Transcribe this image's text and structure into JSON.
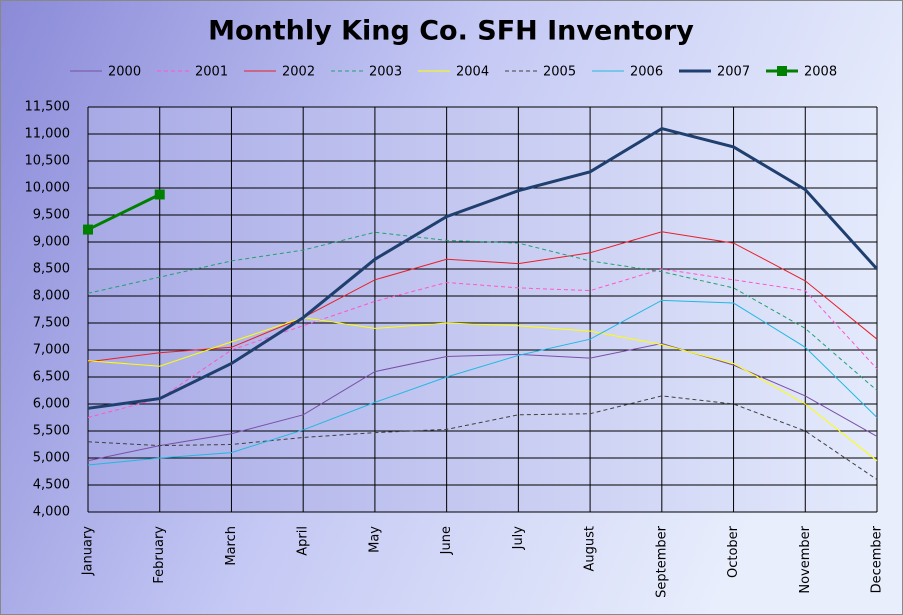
{
  "chart_data": {
    "type": "line",
    "title": "Monthly King Co. SFH Inventory",
    "categories": [
      "January",
      "February",
      "March",
      "April",
      "May",
      "June",
      "July",
      "August",
      "September",
      "October",
      "November",
      "December"
    ],
    "series": [
      {
        "name": "2000",
        "color": "#7a4fa8",
        "width": 1,
        "dash": false,
        "values": [
          4950,
          5230,
          5450,
          5800,
          6600,
          6880,
          6920,
          6850,
          7120,
          6720,
          6150,
          5400
        ]
      },
      {
        "name": "2001",
        "color": "#ff55cc",
        "width": 1,
        "dash": true,
        "values": [
          5750,
          6100,
          7000,
          7450,
          7900,
          8250,
          8150,
          8100,
          8500,
          8300,
          8100,
          6650
        ]
      },
      {
        "name": "2002",
        "color": "#e82028",
        "width": 1,
        "dash": false,
        "values": [
          6780,
          6950,
          7050,
          7600,
          8300,
          8680,
          8600,
          8800,
          9190,
          8980,
          8280,
          7200
        ]
      },
      {
        "name": "2003",
        "color": "#22a070",
        "width": 1,
        "dash": true,
        "values": [
          8050,
          8350,
          8650,
          8850,
          9180,
          9030,
          8980,
          8650,
          8450,
          8150,
          7400,
          6250
        ]
      },
      {
        "name": "2004",
        "color": "#ffff00",
        "width": 1,
        "dash": false,
        "values": [
          6800,
          6700,
          7150,
          7600,
          7400,
          7500,
          7450,
          7350,
          7100,
          6750,
          6000,
          4950
        ]
      },
      {
        "name": "2005",
        "color": "#404040",
        "width": 1,
        "dash": true,
        "values": [
          5300,
          5230,
          5250,
          5380,
          5470,
          5530,
          5800,
          5820,
          6150,
          6000,
          5500,
          4600
        ]
      },
      {
        "name": "2006",
        "color": "#22b8e0",
        "width": 1,
        "dash": false,
        "values": [
          4870,
          5000,
          5100,
          5520,
          6030,
          6500,
          6900,
          7200,
          7920,
          7870,
          7050,
          5750
        ]
      },
      {
        "name": "2007",
        "color": "#1f3f6f",
        "width": 3,
        "dash": false,
        "values": [
          5920,
          6100,
          6750,
          7600,
          8680,
          9470,
          9950,
          10300,
          11100,
          10760,
          9970,
          8500
        ]
      },
      {
        "name": "2008",
        "color": "#008000",
        "width": 3,
        "dash": false,
        "marker": "square",
        "values": [
          9230,
          9880,
          null,
          null,
          null,
          null,
          null,
          null,
          null,
          null,
          null,
          null
        ]
      }
    ],
    "ylim": [
      4000,
      11500
    ],
    "yticks": [
      {
        "value": 4000,
        "label": "4,000"
      },
      {
        "value": 4500,
        "label": "4,500"
      },
      {
        "value": 5000,
        "label": "5,000"
      },
      {
        "value": 5500,
        "label": "5,500"
      },
      {
        "value": 6000,
        "label": "6,000"
      },
      {
        "value": 6500,
        "label": "6,500"
      },
      {
        "value": 7000,
        "label": "7,000"
      },
      {
        "value": 7500,
        "label": "7,500"
      },
      {
        "value": 8000,
        "label": "8,000"
      },
      {
        "value": 8500,
        "label": "8,500"
      },
      {
        "value": 9000,
        "label": "9,000"
      },
      {
        "value": 9500,
        "label": "9,500"
      },
      {
        "value": 10000,
        "label": "10,000"
      },
      {
        "value": 10500,
        "label": "10,500"
      },
      {
        "value": 11000,
        "label": "11,000"
      },
      {
        "value": 11500,
        "label": "11,500"
      }
    ],
    "grid": true,
    "legend": "top"
  }
}
